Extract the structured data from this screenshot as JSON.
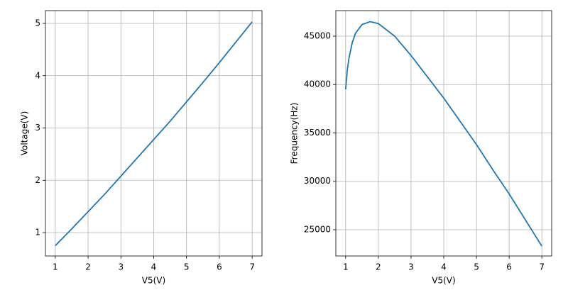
{
  "chart_data": [
    {
      "type": "line",
      "xlabel": "V5(V)",
      "ylabel": "Voltage(V)",
      "x": [
        1,
        1.5,
        2,
        2.5,
        3,
        3.5,
        4,
        4.5,
        5,
        5.5,
        6,
        6.5,
        7
      ],
      "values": [
        0.75,
        1.07,
        1.4,
        1.73,
        2.08,
        2.43,
        2.78,
        3.13,
        3.5,
        3.87,
        4.25,
        4.64,
        5.03
      ],
      "color": "#1f77b4",
      "xlim": [
        0.7,
        7.3
      ],
      "ylim": [
        0.553,
        5.244
      ],
      "xticks": [
        1,
        2,
        3,
        4,
        5,
        6,
        7
      ],
      "yticks": [
        1,
        2,
        3,
        4,
        5
      ],
      "grid": true
    },
    {
      "type": "line",
      "xlabel": "V5(V)",
      "ylabel": "Frequency(Hz)",
      "x": [
        1,
        1.05,
        1.1,
        1.2,
        1.3,
        1.5,
        1.75,
        2,
        2.5,
        3,
        3.5,
        4,
        4.5,
        5,
        5.5,
        6,
        6.5,
        7
      ],
      "values": [
        39500,
        41500,
        42700,
        44300,
        45300,
        46200,
        46500,
        46300,
        45000,
        43000,
        40800,
        38600,
        36200,
        33800,
        31200,
        28700,
        26000,
        23300
      ],
      "color": "#1f77b4",
      "xlim": [
        0.7,
        7.3
      ],
      "ylim": [
        22289,
        47637
      ],
      "xticks": [
        1,
        2,
        3,
        4,
        5,
        6,
        7
      ],
      "yticks": [
        25000,
        30000,
        35000,
        40000,
        45000
      ],
      "grid": true
    }
  ]
}
